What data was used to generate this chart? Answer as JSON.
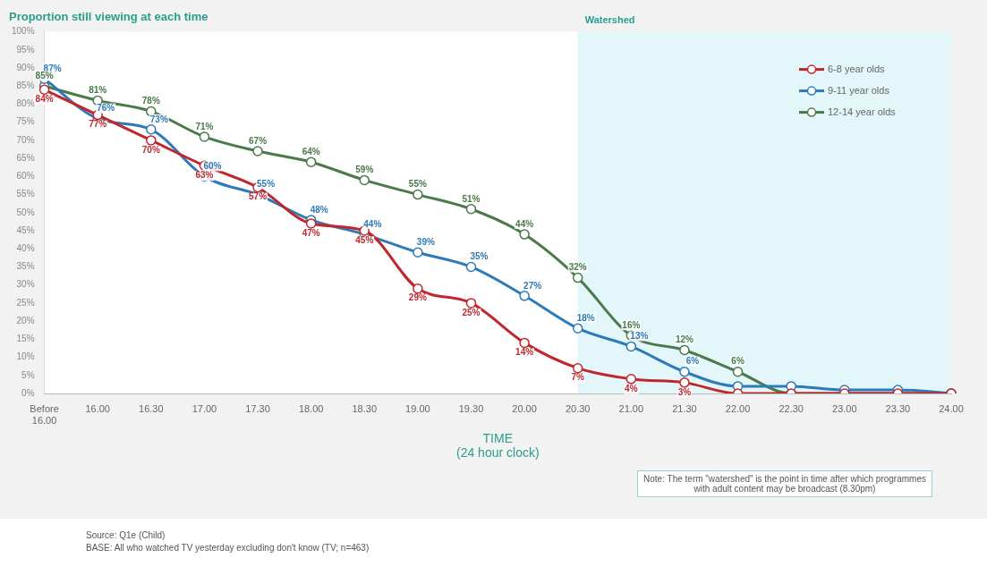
{
  "chart_data": {
    "type": "line",
    "title": "Proportion still viewing at each time",
    "xlabel": "TIME\n(24 hour clock)",
    "categories": [
      "Before 16.00",
      "16.00",
      "16.30",
      "17.00",
      "17.30",
      "18.00",
      "18.30",
      "19.00",
      "19.30",
      "20.00",
      "20.30",
      "21.00",
      "21.30",
      "22.00",
      "22.30",
      "23.00",
      "23.30",
      "24.00"
    ],
    "series": [
      {
        "name": "6-8 year olds",
        "color": "#c0272d",
        "values": [
          84,
          77,
          70,
          63,
          57,
          47,
          45,
          29,
          25,
          14,
          7,
          4,
          3,
          0,
          0,
          0,
          0,
          0
        ],
        "value_labels": [
          "84%",
          "77%",
          "70%",
          "63%",
          "57%",
          "47%",
          "45%",
          "29%",
          "25%",
          "14%",
          "7%",
          "4%",
          "3%",
          null,
          null,
          null,
          null,
          null
        ]
      },
      {
        "name": "9-11 year olds",
        "color": "#2e7ab8",
        "values": [
          87,
          76,
          73,
          60,
          55,
          48,
          44,
          39,
          35,
          27,
          18,
          13,
          6,
          2,
          2,
          1,
          1,
          0
        ],
        "value_labels": [
          "87%",
          "76%",
          "73%",
          "60%",
          "55%",
          "48%",
          "44%",
          "39%",
          "35%",
          "27%",
          "18%",
          "13%",
          "6%",
          null,
          null,
          null,
          null,
          null
        ]
      },
      {
        "name": "12-14 year olds",
        "color": "#4a7a4a",
        "values": [
          85,
          81,
          78,
          71,
          67,
          64,
          59,
          55,
          51,
          44,
          32,
          16,
          12,
          6,
          0,
          0,
          0,
          0
        ],
        "value_labels": [
          "85%",
          "81%",
          "78%",
          "71%",
          "67%",
          "64%",
          "59%",
          "55%",
          "51%",
          "44%",
          "32%",
          "16%",
          "12%",
          "6%",
          null,
          null,
          null,
          null
        ]
      }
    ],
    "ylim": [
      0,
      100
    ],
    "yticks": [
      {
        "value": 0,
        "label": "0%"
      },
      {
        "value": 5,
        "label": "5%"
      },
      {
        "value": 10,
        "label": "10%"
      },
      {
        "value": 15,
        "label": "15%"
      },
      {
        "value": 20,
        "label": "20%"
      },
      {
        "value": 25,
        "label": "25%"
      },
      {
        "value": 30,
        "label": "30%"
      },
      {
        "value": 35,
        "label": "35%"
      },
      {
        "value": 40,
        "label": "40%"
      },
      {
        "value": 45,
        "label": "45%"
      },
      {
        "value": 50,
        "label": "50%"
      },
      {
        "value": 55,
        "label": "55%"
      },
      {
        "value": 60,
        "label": "60%"
      },
      {
        "value": 65,
        "label": "65%"
      },
      {
        "value": 70,
        "label": "70%"
      },
      {
        "value": 75,
        "label": "75%"
      },
      {
        "value": 80,
        "label": "80%"
      },
      {
        "value": 85,
        "label": "85%"
      },
      {
        "value": 90,
        "label": "90%"
      },
      {
        "value": 95,
        "label": "95%"
      },
      {
        "value": 100,
        "label": "100%"
      }
    ],
    "bands": [
      {
        "axis": "x",
        "from": "20.30",
        "to": "24.00",
        "label": "Watershed",
        "color": "#e3f6fa"
      }
    ],
    "grid": false,
    "legend": "top right",
    "marker": "circle",
    "line_style": "solid",
    "annotations": [
      "Note: The term \"watershed\" is the point in time after which programmes with adult content may be broadcast (8.30pm)",
      "Source: Q1e (Child)",
      "BASE: All who watched TV yesterday excluding don't know (TV; n=463)"
    ]
  }
}
